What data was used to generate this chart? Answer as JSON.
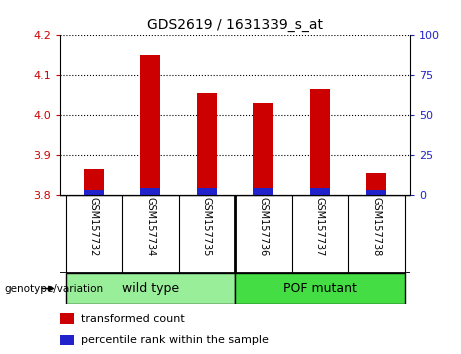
{
  "title": "GDS2619 / 1631339_s_at",
  "samples": [
    "GSM157732",
    "GSM157734",
    "GSM157735",
    "GSM157736",
    "GSM157737",
    "GSM157738"
  ],
  "transformed_counts": [
    3.865,
    4.15,
    4.055,
    4.03,
    4.065,
    3.855
  ],
  "percentile_ranks": [
    3,
    4,
    4,
    4,
    4,
    3
  ],
  "ylim_left": [
    3.8,
    4.2
  ],
  "ylim_right": [
    0,
    100
  ],
  "yticks_left": [
    3.8,
    3.9,
    4.0,
    4.1,
    4.2
  ],
  "yticks_right": [
    0,
    25,
    50,
    75,
    100
  ],
  "bar_bottom": 3.8,
  "red_color": "#cc0000",
  "blue_color": "#2222cc",
  "groups": [
    {
      "label": "wild type",
      "start": 0,
      "end": 2,
      "color": "#99ee99"
    },
    {
      "label": "POF mutant",
      "start": 3,
      "end": 5,
      "color": "#44dd44"
    }
  ],
  "group_row_label": "genotype/variation",
  "legend_items": [
    {
      "color": "#cc0000",
      "label": "transformed count"
    },
    {
      "color": "#2222cc",
      "label": "percentile rank within the sample"
    }
  ],
  "tick_color_left": "#cc0000",
  "tick_color_right": "#2222cc",
  "bg_xlabel": "#cccccc",
  "title_fontsize": 10,
  "tick_fontsize": 8,
  "sample_fontsize": 7,
  "legend_fontsize": 8,
  "group_fontsize": 9
}
